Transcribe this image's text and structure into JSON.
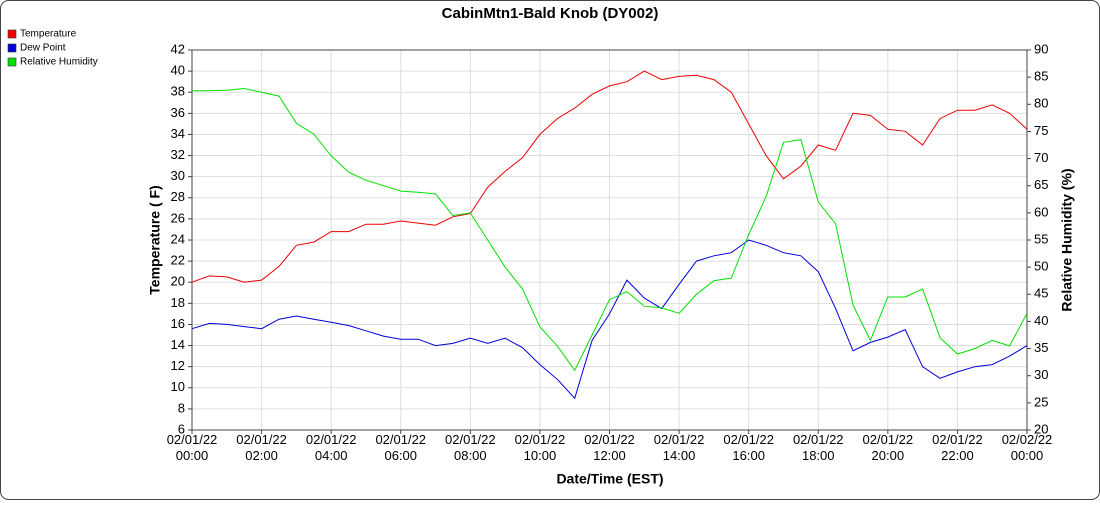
{
  "chart_data": {
    "type": "line",
    "title": "CabinMtn1-Bald Knob (DY002)",
    "x_label": "Date/Time (EST)",
    "y_label": "Temperature ( F)",
    "y2_label": "Relative Humidity (%)",
    "x": [
      "02/01/22 00:00",
      "02/01/22 00:30",
      "02/01/22 01:00",
      "02/01/22 01:30",
      "02/01/22 02:00",
      "02/01/22 02:30",
      "02/01/22 03:00",
      "02/01/22 03:30",
      "02/01/22 04:00",
      "02/01/22 04:30",
      "02/01/22 05:00",
      "02/01/22 05:30",
      "02/01/22 06:00",
      "02/01/22 06:30",
      "02/01/22 07:00",
      "02/01/22 07:30",
      "02/01/22 08:00",
      "02/01/22 08:30",
      "02/01/22 09:00",
      "02/01/22 09:30",
      "02/01/22 10:00",
      "02/01/22 10:30",
      "02/01/22 11:00",
      "02/01/22 11:30",
      "02/01/22 12:00",
      "02/01/22 12:30",
      "02/01/22 13:00",
      "02/01/22 13:30",
      "02/01/22 14:00",
      "02/01/22 14:30",
      "02/01/22 15:00",
      "02/01/22 15:30",
      "02/01/22 16:00",
      "02/01/22 16:30",
      "02/01/22 17:00",
      "02/01/22 17:30",
      "02/01/22 18:00",
      "02/01/22 18:30",
      "02/01/22 19:00",
      "02/01/22 19:30",
      "02/01/22 20:00",
      "02/01/22 20:30",
      "02/01/22 21:00",
      "02/01/22 21:30",
      "02/01/22 22:00",
      "02/01/22 22:30",
      "02/01/22 23:00",
      "02/01/22 23:30",
      "02/02/22 00:00"
    ],
    "series": [
      {
        "name": "Temperature",
        "color": "#ee0000",
        "values": [
          20.0,
          20.6,
          20.5,
          20.0,
          20.2,
          21.5,
          23.5,
          23.8,
          24.8,
          24.8,
          25.5,
          25.5,
          25.8,
          25.6,
          25.4,
          26.2,
          26.5,
          29.0,
          30.5,
          31.8,
          34.0,
          35.5,
          36.5,
          37.8,
          38.6,
          39.0,
          40.0,
          39.2,
          39.5,
          39.6,
          39.2,
          38.0,
          35.0,
          32.0,
          29.8,
          31.0,
          33.0,
          32.5,
          36.0,
          35.8,
          34.5,
          34.3,
          33.0,
          35.5,
          36.3,
          36.3,
          36.8,
          36.0,
          34.5
        ]
      },
      {
        "name": "Dew Point",
        "color": "#0000dd",
        "values": [
          15.6,
          16.1,
          16.0,
          15.8,
          15.6,
          16.5,
          16.8,
          16.5,
          16.2,
          15.9,
          15.4,
          14.9,
          14.6,
          14.6,
          14.0,
          14.2,
          14.7,
          14.2,
          14.7,
          13.8,
          12.2,
          10.8,
          9.0,
          14.5,
          17.0,
          20.2,
          18.5,
          17.5,
          19.8,
          22.0,
          22.5,
          22.8,
          24.0,
          23.5,
          22.8,
          22.5,
          21.0,
          17.5,
          13.5,
          14.3,
          14.8,
          15.5,
          12.0,
          10.9,
          11.5,
          12.0,
          12.2,
          13.0,
          14.0
        ]
      },
      {
        "name": "Relative Humidity",
        "color": "#00e000",
        "axis": "y2",
        "values": [
          82.5,
          82.5,
          82.6,
          82.9,
          82.2,
          81.5,
          76.5,
          74.5,
          70.5,
          67.5,
          66.0,
          65.0,
          64.0,
          63.8,
          63.5,
          59.5,
          60.0,
          55.0,
          50.0,
          46.0,
          39.0,
          35.5,
          31.0,
          37.5,
          44.0,
          45.5,
          42.8,
          42.5,
          41.5,
          45.0,
          47.5,
          48.0,
          56.0,
          63.0,
          73.0,
          73.5,
          62.0,
          58.0,
          43.0,
          36.5,
          44.5,
          44.5,
          46.0,
          37.0,
          34.0,
          35.0,
          36.5,
          35.5,
          41.5
        ]
      }
    ],
    "xlim": [
      "02/01/22 00:00",
      "02/02/22 00:00"
    ],
    "xticks": [
      "02/01/22 00:00",
      "02/01/22 02:00",
      "02/01/22 04:00",
      "02/01/22 06:00",
      "02/01/22 08:00",
      "02/01/22 10:00",
      "02/01/22 12:00",
      "02/01/22 14:00",
      "02/01/22 16:00",
      "02/01/22 18:00",
      "02/01/22 20:00",
      "02/01/22 22:00",
      "02/02/22 00:00"
    ],
    "ylim": [
      6,
      42
    ],
    "yticks": [
      6,
      8,
      10,
      12,
      14,
      16,
      18,
      20,
      22,
      24,
      26,
      28,
      30,
      32,
      34,
      36,
      38,
      40,
      42
    ],
    "y2lim": [
      20,
      90
    ],
    "y2ticks": [
      20,
      25,
      30,
      35,
      40,
      45,
      50,
      55,
      60,
      65,
      70,
      75,
      80,
      85,
      90
    ],
    "grid": true,
    "legend": "top-left"
  }
}
